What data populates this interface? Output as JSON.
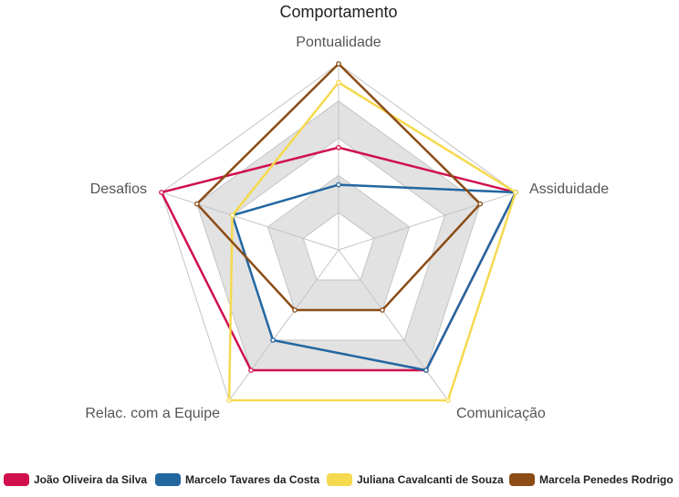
{
  "chart_data": {
    "type": "radar",
    "title": "Comportamento",
    "axes": [
      "Pontualidade",
      "Assiduidade",
      "Comunicação",
      "Relac. com a Equipe",
      "Desafios"
    ],
    "range": [
      0,
      100
    ],
    "rings": 5,
    "series": [
      {
        "name": "João Oliveira da Silva",
        "color": "#d0104c",
        "values": [
          55,
          100,
          80,
          80,
          100
        ]
      },
      {
        "name": "Marcelo Tavares da Costa",
        "color": "#2367a1",
        "values": [
          35,
          100,
          80,
          60,
          60
        ]
      },
      {
        "name": "Juliana Cavalcanti de Souza",
        "color": "#f5d94f",
        "values": [
          90,
          100,
          100,
          100,
          60
        ]
      },
      {
        "name": "Marcela Penedes Rodrigo",
        "color": "#8b4c15",
        "values": [
          100,
          80,
          40,
          40,
          80
        ]
      }
    ],
    "grid_colors": {
      "band_fill": "#e2e2e2",
      "line": "#c4c4c4"
    }
  }
}
